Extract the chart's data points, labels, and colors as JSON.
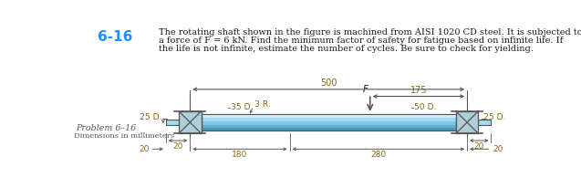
{
  "title_number": "6-16",
  "title_text_line1": "The rotating shaft shown in the figure is machined from AISI 1020 CD steel. It is subjected to",
  "title_text_line2": "a force of F = 6 kN. Find the minimum factor of safety for fatigue based on infinite life. If",
  "title_text_line3": "the life is not infinite, estimate the number of cycles. Be sure to check for yielding.",
  "problem_label": "Problem 6–16",
  "dimensions_label": "Dimensions in millimeters",
  "title_number_color": "#1E90FF",
  "text_color": "#1a1a1a",
  "dim_text_color": "#8B6914",
  "shaft_color_light": "#D0EFFF",
  "shaft_color_mid": "#7CC8E8",
  "shaft_color_dark": "#4A9AB8",
  "bearing_color": "#8AB8C8",
  "line_color": "#555555",
  "bg_color": "#FFFFFF"
}
